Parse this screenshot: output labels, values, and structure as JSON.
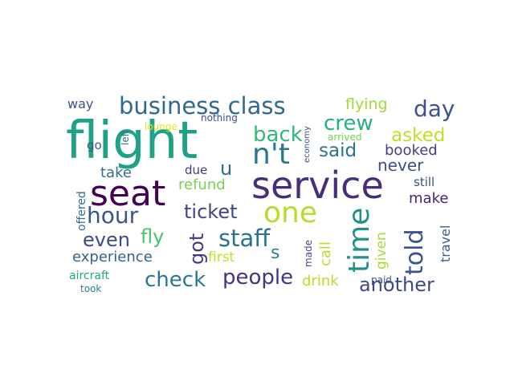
{
  "word_cloud": {
    "words": [
      {
        "text": "flight",
        "color": "#1fa187"
      },
      {
        "text": "service",
        "color": "#472d7b"
      },
      {
        "text": "seat",
        "color": "#440154"
      },
      {
        "text": "business class",
        "color": "#31688e"
      },
      {
        "text": "n't",
        "color": "#2a788e"
      },
      {
        "text": "one",
        "color": "#b5de2b"
      },
      {
        "text": "time",
        "color": "#21918c"
      },
      {
        "text": "told",
        "color": "#3b528b"
      },
      {
        "text": "hour",
        "color": "#39568c"
      },
      {
        "text": "staff",
        "color": "#2c728e"
      },
      {
        "text": "crew",
        "color": "#29af7f"
      },
      {
        "text": "back",
        "color": "#35b779"
      },
      {
        "text": "day",
        "color": "#3b528b"
      },
      {
        "text": "check",
        "color": "#2a788e"
      },
      {
        "text": "people",
        "color": "#46327e"
      },
      {
        "text": "another",
        "color": "#3e4989"
      },
      {
        "text": "got",
        "color": "#453781"
      },
      {
        "text": "ticket",
        "color": "#414487"
      },
      {
        "text": "even",
        "color": "#3e4a89"
      },
      {
        "text": "fly",
        "color": "#4ac16d"
      },
      {
        "text": "u",
        "color": "#31688e"
      },
      {
        "text": "asked",
        "color": "#bddf26"
      },
      {
        "text": "said",
        "color": "#2c728e"
      },
      {
        "text": "flying",
        "color": "#a0da39"
      },
      {
        "text": "never",
        "color": "#3e4c8a"
      },
      {
        "text": "booked",
        "color": "#433e85"
      },
      {
        "text": "experience",
        "color": "#33638d"
      },
      {
        "text": "refund",
        "color": "#7ad151"
      },
      {
        "text": "take",
        "color": "#2d708e"
      },
      {
        "text": "s",
        "color": "#25848e"
      },
      {
        "text": "drink",
        "color": "#b5de2b"
      },
      {
        "text": "first",
        "color": "#c2df23"
      },
      {
        "text": "make",
        "color": "#482475"
      },
      {
        "text": "given",
        "color": "#a5db36"
      },
      {
        "text": "call",
        "color": "#b8de29"
      },
      {
        "text": "still",
        "color": "#3b528b"
      },
      {
        "text": "aircraft",
        "color": "#22a884"
      },
      {
        "text": "travel",
        "color": "#355f8d"
      },
      {
        "text": "offered",
        "color": "#2e6e8e"
      },
      {
        "text": "way",
        "color": "#3b528b"
      },
      {
        "text": "go",
        "color": "#38598c"
      },
      {
        "text": "due",
        "color": "#443983"
      },
      {
        "text": "nothing",
        "color": "#3d4e8a"
      },
      {
        "text": "left",
        "color": "#2a778e"
      },
      {
        "text": "made",
        "color": "#3f4788"
      },
      {
        "text": "economy",
        "color": "#3c4f8a"
      },
      {
        "text": "lounge",
        "color": "#e5e419"
      },
      {
        "text": "arrived",
        "color": "#75d054"
      },
      {
        "text": "paid",
        "color": "#3b518b"
      },
      {
        "text": "took",
        "color": "#26828e"
      }
    ]
  }
}
